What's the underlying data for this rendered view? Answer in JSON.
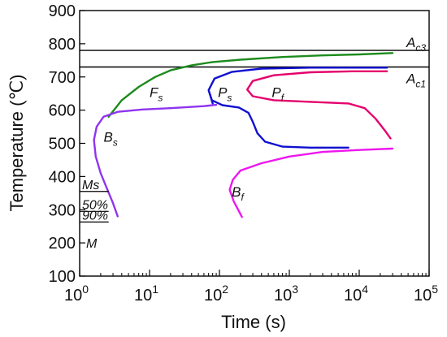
{
  "chart_data": {
    "type": "line",
    "title": "",
    "xlabel": "Time (s)",
    "ylabel": "Temperature (℃)",
    "x_scale": "log",
    "xlim": [
      1,
      100000
    ],
    "ylim": [
      100,
      900
    ],
    "x_ticks": [
      {
        "value": 1,
        "base": "10",
        "exp": "0"
      },
      {
        "value": 10,
        "base": "10",
        "exp": "1"
      },
      {
        "value": 100,
        "base": "10",
        "exp": "2"
      },
      {
        "value": 1000,
        "base": "10",
        "exp": "3"
      },
      {
        "value": 10000,
        "base": "10",
        "exp": "4"
      },
      {
        "value": 100000,
        "base": "10",
        "exp": "5"
      }
    ],
    "y_ticks": [
      {
        "value": 100,
        "label": "100"
      },
      {
        "value": 200,
        "label": "200"
      },
      {
        "value": 300,
        "label": "300"
      },
      {
        "value": 400,
        "label": "400"
      },
      {
        "value": 500,
        "label": "500"
      },
      {
        "value": 600,
        "label": "600"
      },
      {
        "value": 700,
        "label": "700"
      },
      {
        "value": 800,
        "label": "800"
      },
      {
        "value": 900,
        "label": "900"
      }
    ],
    "grid": false,
    "reference_lines": [
      {
        "id": "ac3",
        "y": 780,
        "main": "A",
        "sub": "c3",
        "color": "#000000"
      },
      {
        "id": "ac1",
        "y": 730,
        "main": "A",
        "sub": "c1",
        "color": "#000000"
      }
    ],
    "series": [
      {
        "id": "fs",
        "main": "F",
        "sub": "s",
        "color": "#1e8b1e",
        "label_at": {
          "x": 10,
          "y": 640
        },
        "points": [
          [
            2.6,
            580
          ],
          [
            4,
            630
          ],
          [
            7,
            670
          ],
          [
            12,
            700
          ],
          [
            20,
            720
          ],
          [
            40,
            735
          ],
          [
            80,
            745
          ],
          [
            200,
            752
          ],
          [
            800,
            760
          ],
          [
            3000,
            765
          ],
          [
            10000,
            768
          ],
          [
            30000,
            772
          ]
        ]
      },
      {
        "id": "ps",
        "main": "P",
        "sub": "s",
        "color": "#1010d0",
        "label_at": {
          "x": 95,
          "y": 640
        },
        "points": [
          [
            80,
            620
          ],
          [
            70,
            660
          ],
          [
            85,
            695
          ],
          [
            150,
            715
          ],
          [
            400,
            725
          ],
          [
            2000,
            728
          ],
          [
            8000,
            728
          ],
          [
            25000,
            728
          ],
          [
            70,
            660
          ],
          [
            78,
            630
          ],
          [
            110,
            615
          ],
          [
            190,
            608
          ],
          [
            260,
            592
          ],
          [
            300,
            565
          ],
          [
            350,
            530
          ],
          [
            450,
            505
          ],
          [
            800,
            490
          ],
          [
            2000,
            487
          ],
          [
            7000,
            487
          ]
        ]
      },
      {
        "id": "pf",
        "main": "P",
        "sub": "f",
        "color": "#e5006d",
        "label_at": {
          "x": 560,
          "y": 640
        },
        "points": [
          [
            25000,
            717
          ],
          [
            8000,
            717
          ],
          [
            2000,
            714
          ],
          [
            600,
            705
          ],
          [
            300,
            688
          ],
          [
            250,
            662
          ],
          [
            300,
            642
          ],
          [
            600,
            630
          ],
          [
            2000,
            625
          ],
          [
            7000,
            620
          ],
          [
            12000,
            606
          ],
          [
            17000,
            575
          ],
          [
            23000,
            540
          ],
          [
            28000,
            515
          ]
        ]
      },
      {
        "id": "bs",
        "main": "B",
        "sub": "s",
        "color": "#8f34ef",
        "label_at": {
          "x": 2.2,
          "y": 505
        },
        "points": [
          [
            3.5,
            280
          ],
          [
            3,
            320
          ],
          [
            2.5,
            360
          ],
          [
            2,
            410
          ],
          [
            1.7,
            460
          ],
          [
            1.6,
            510
          ],
          [
            1.75,
            550
          ],
          [
            2.2,
            580
          ],
          [
            3.5,
            595
          ],
          [
            8,
            602
          ],
          [
            20,
            606
          ],
          [
            60,
            612
          ],
          [
            90,
            616
          ]
        ]
      },
      {
        "id": "bf",
        "main": "B",
        "sub": "f",
        "color": "#ee16ee",
        "label_at": {
          "x": 150,
          "y": 340
        },
        "points": [
          [
            210,
            278
          ],
          [
            160,
            325
          ],
          [
            140,
            360
          ],
          [
            155,
            390
          ],
          [
            200,
            418
          ],
          [
            400,
            440
          ],
          [
            1000,
            460
          ],
          [
            3000,
            474
          ],
          [
            10000,
            480
          ],
          [
            30000,
            484
          ]
        ]
      }
    ],
    "transformation_levels": [
      {
        "id": "ms",
        "y": 355,
        "label": "Ms"
      },
      {
        "id": "p50",
        "y": 295,
        "label": "50%"
      },
      {
        "id": "p90",
        "y": 263,
        "label": "90%"
      },
      {
        "id": "m",
        "y": null,
        "label": "M",
        "label_y": 200
      }
    ],
    "style": {
      "axis_color": "#000000"
    }
  }
}
